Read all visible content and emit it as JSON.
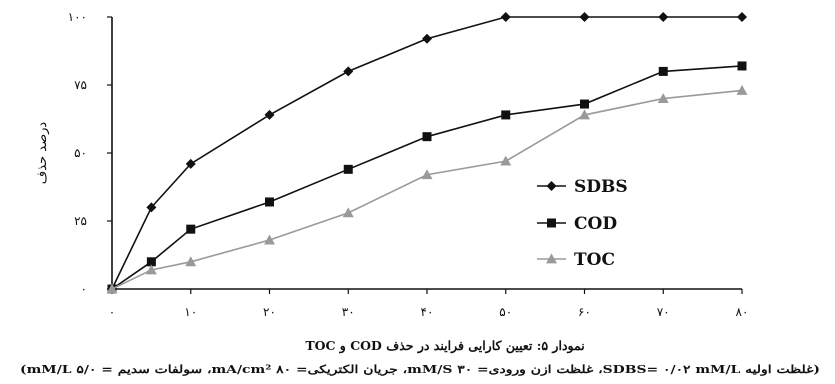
{
  "chart_data": {
    "type": "line",
    "ylabel": "درصد حذف",
    "x": [
      0,
      5,
      10,
      20,
      30,
      40,
      50,
      60,
      70,
      80
    ],
    "xlim": [
      0,
      80
    ],
    "ylim": [
      0,
      100
    ],
    "x_ticks": [
      0,
      10,
      20,
      30,
      40,
      50,
      60,
      70,
      80
    ],
    "x_tick_labels": [
      "۰",
      "۱۰",
      "۲۰",
      "۳۰",
      "۴۰",
      "۵۰",
      "۶۰",
      "۷۰",
      "۸۰"
    ],
    "y_ticks": [
      0,
      25,
      50,
      75,
      100
    ],
    "y_tick_labels": [
      "۰",
      "۲۵",
      "۵۰",
      "۷۵",
      "۱۰۰"
    ],
    "grid": false,
    "legend_position": "right-center",
    "series": [
      {
        "name": "SDBS",
        "marker": "diamond",
        "color": "#111111",
        "values": [
          0,
          30,
          46,
          64,
          80,
          92,
          100,
          100,
          100,
          100
        ]
      },
      {
        "name": "COD",
        "marker": "square",
        "color": "#111111",
        "values": [
          0,
          10,
          22,
          32,
          44,
          56,
          64,
          68,
          80,
          82
        ]
      },
      {
        "name": "TOC",
        "marker": "triangle",
        "color": "#9a9a9a",
        "values": [
          0,
          7,
          10,
          18,
          28,
          42,
          47,
          64,
          70,
          73
        ]
      }
    ],
    "caption": "نمودار ۵: تعیین کارایی فرایند در حذف COD و TOC",
    "caption_note": "(غلظت اولیه SDBS= ۰/۰۲ mM/L، غلظت ازن ورودی= ۳۰ mM/S، جریان الکتریکی= ۸۰ mA/cm²، سولفات سدیم = ۵/۰ mM/L)"
  }
}
